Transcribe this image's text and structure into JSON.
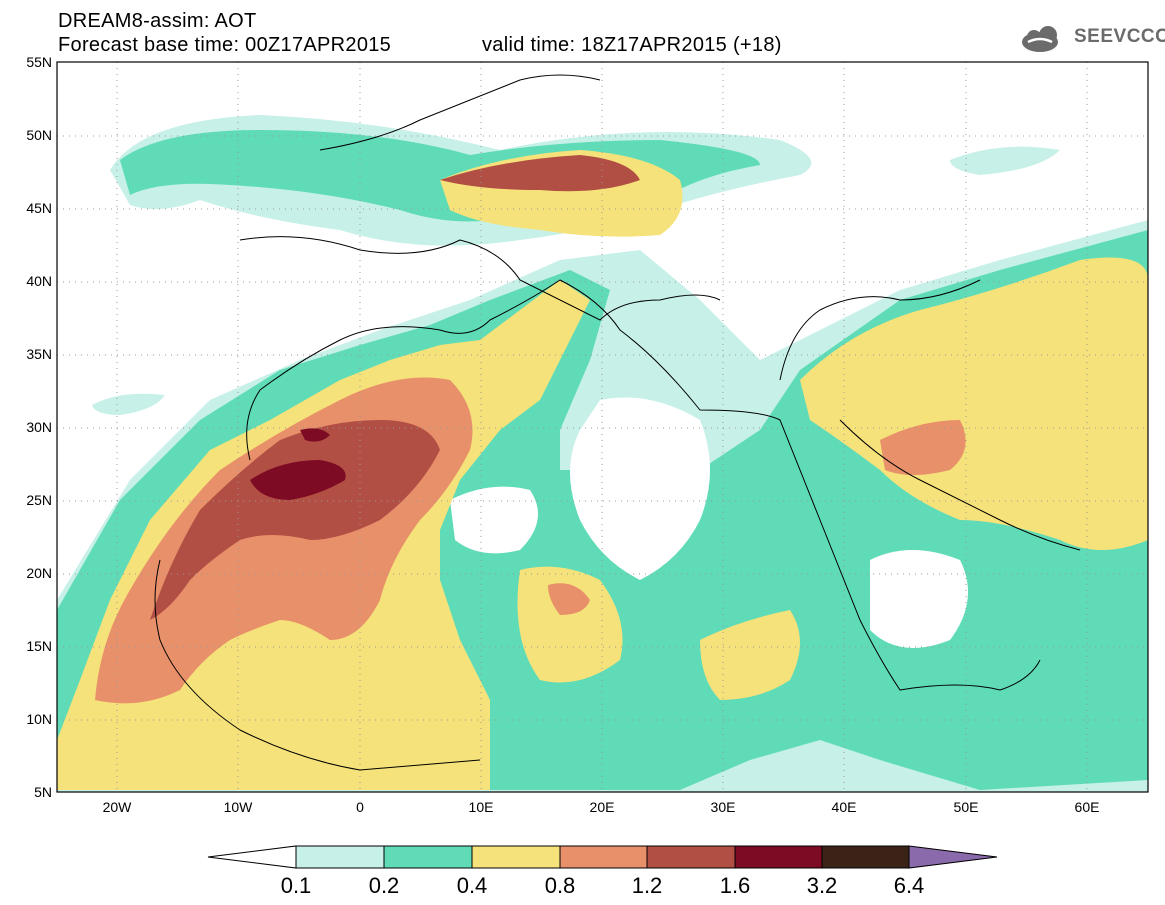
{
  "header": {
    "line1": "DREAM8-assim: AOT",
    "line2": "Forecast base time: 00Z17APR2015",
    "valid": "valid time: 18Z17APR2015 (+18)"
  },
  "logo": {
    "text": "SEEVCCC",
    "icon": "cloud-icon"
  },
  "map": {
    "lat_labels": [
      "55N",
      "50N",
      "45N",
      "40N",
      "35N",
      "30N",
      "25N",
      "20N",
      "15N",
      "10N",
      "5N"
    ],
    "lon_labels": [
      "20W",
      "10W",
      "0",
      "10E",
      "20E",
      "30E",
      "40E",
      "50E",
      "60E"
    ],
    "lon_range": [
      -25,
      65
    ],
    "lat_range": [
      5,
      55
    ],
    "grid": true,
    "grid_style": "dotted"
  },
  "legend": {
    "ticks": [
      "0.1",
      "0.2",
      "0.4",
      "0.8",
      "1.2",
      "1.6",
      "3.2",
      "6.4"
    ],
    "colors": {
      "under": "#ffffff",
      "0.1-0.2": "#c6f0e8",
      "0.2-0.4": "#5fdcb7",
      "0.4-0.8": "#f5e27a",
      "0.8-1.2": "#e8906a",
      "1.2-1.6": "#b24f44",
      "1.6-3.2": "#7d0b24",
      "3.2-6.4": "#3b2417",
      "over": "#8a6aaa"
    }
  }
}
